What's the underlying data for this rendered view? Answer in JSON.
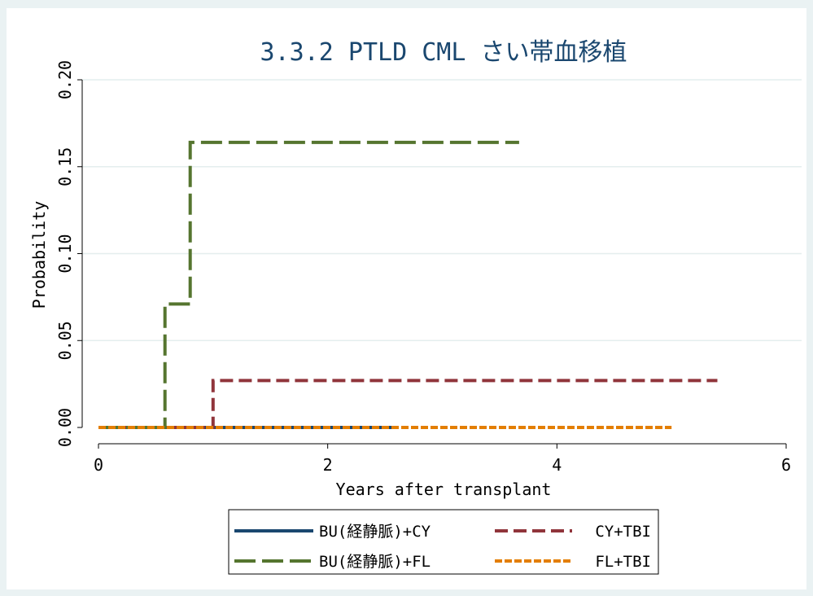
{
  "chart_data": {
    "type": "line",
    "step": true,
    "title": "3.3.2 PTLD CML さい帯血移植",
    "xlabel": "Years after transplant",
    "ylabel": "Probability",
    "xlim": [
      0,
      6
    ],
    "ylim": [
      0,
      0.2
    ],
    "xticks": [
      0,
      2,
      4,
      6
    ],
    "xtick_labels": [
      "0",
      "2",
      "4",
      "6"
    ],
    "yticks": [
      0,
      0.05,
      0.1,
      0.15,
      0.2
    ],
    "ytick_labels": [
      "0.00",
      "0.05",
      "0.10",
      "0.15",
      "0.20"
    ],
    "grid": true,
    "legend_position": "bottom",
    "series": [
      {
        "name": "BU(経静脈)+CY",
        "color": "#1a476f",
        "dash": "solid",
        "points": [
          [
            0,
            0
          ],
          [
            2.6,
            0
          ]
        ]
      },
      {
        "name": "CY+TBI",
        "color": "#90353b",
        "dash": "dash",
        "points": [
          [
            0,
            0
          ],
          [
            1.0,
            0
          ],
          [
            1.0,
            0.027
          ],
          [
            5.4,
            0.027
          ]
        ]
      },
      {
        "name": "BU(経静脈)+FL",
        "color": "#55752f",
        "dash": "longdash",
        "points": [
          [
            0,
            0
          ],
          [
            0.58,
            0
          ],
          [
            0.58,
            0.071
          ],
          [
            0.8,
            0.071
          ],
          [
            0.8,
            0.164
          ],
          [
            3.67,
            0.164
          ]
        ]
      },
      {
        "name": "FL+TBI",
        "color": "#e37e00",
        "dash": "shortdash",
        "points": [
          [
            0,
            0
          ],
          [
            5.0,
            0
          ]
        ]
      }
    ]
  }
}
